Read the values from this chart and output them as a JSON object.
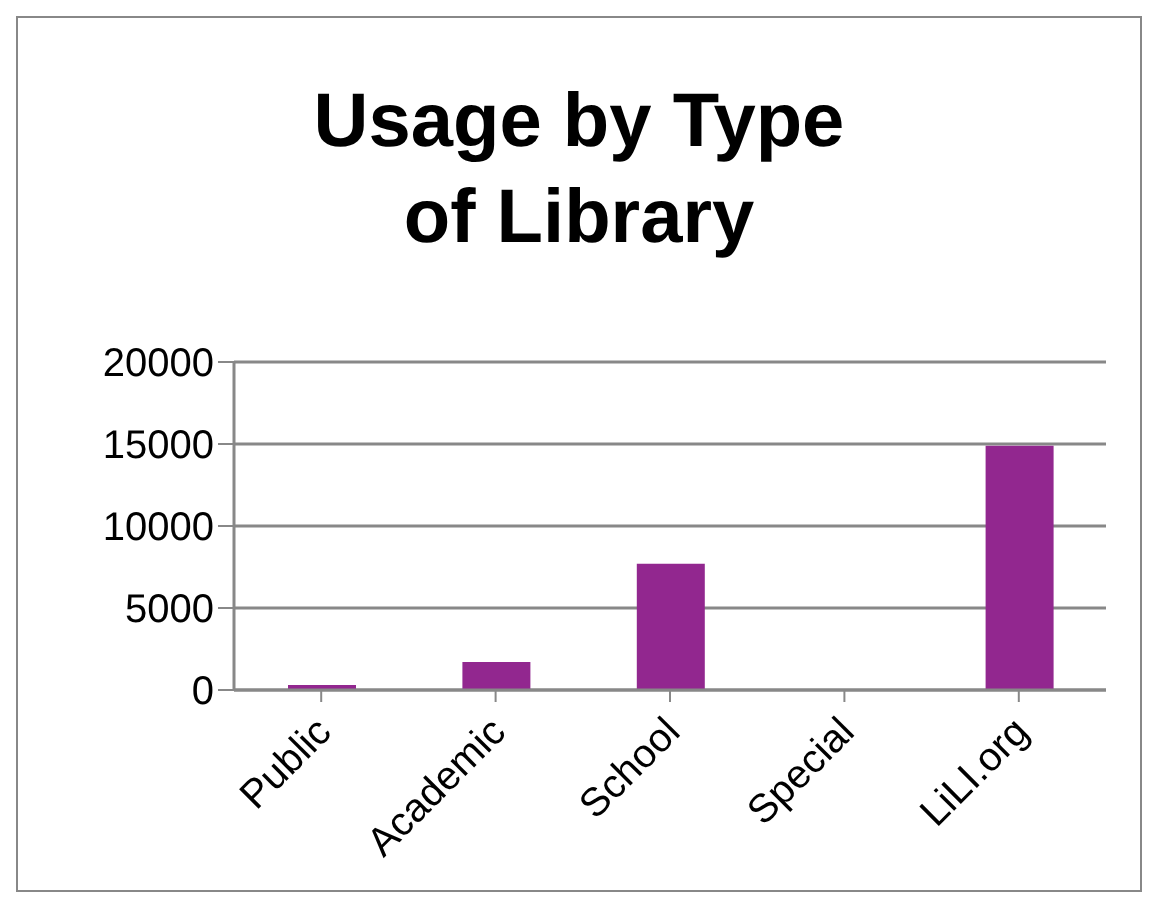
{
  "chart_data": {
    "type": "bar",
    "title": "Usage by Type of Library",
    "categories": [
      "Public",
      "Academic",
      "School",
      "Special",
      "LiLI.org"
    ],
    "values": [
      300,
      1700,
      7700,
      0,
      14900
    ],
    "color": "#92278f",
    "ylim": [
      0,
      20000
    ],
    "yticks": [
      0,
      5000,
      10000,
      15000,
      20000
    ],
    "grid": "y",
    "legend": false
  }
}
